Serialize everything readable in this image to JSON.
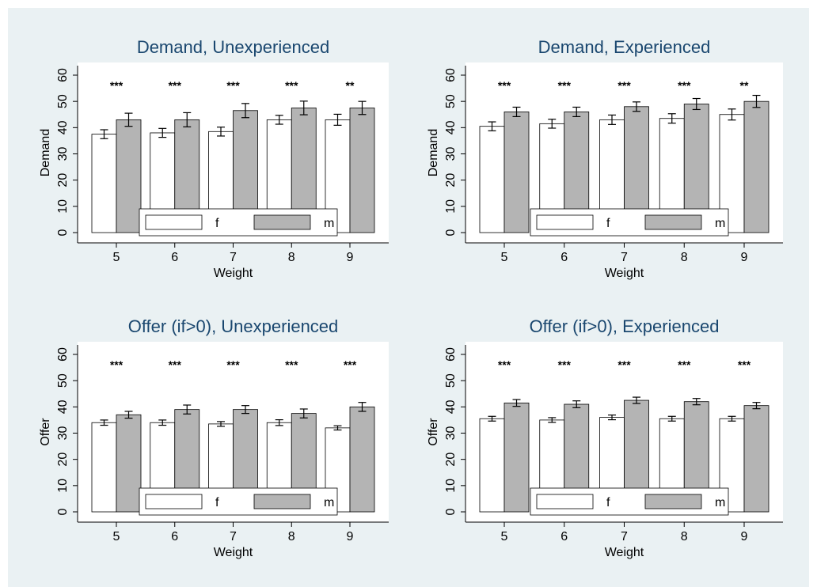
{
  "colors": {
    "background": "#eaf1f3",
    "plot_region": "#ffffff",
    "female_bar": "#ffffff",
    "male_bar": "#b4b4b4",
    "title_text": "#1a476f",
    "axis": "#000000"
  },
  "chart_data": [
    {
      "type": "bar",
      "title": "Demand, Unexperienced",
      "xlabel": "Weight",
      "ylabel": "Demand",
      "categories": [
        "5",
        "6",
        "7",
        "8",
        "9"
      ],
      "ylim": [
        0,
        60
      ],
      "yticks": [
        "0",
        "10",
        "20",
        "30",
        "40",
        "50",
        "60"
      ],
      "series": [
        {
          "name": "f",
          "values": [
            37.5,
            38.0,
            38.5,
            43.0,
            43.0
          ],
          "err_low": [
            35.8,
            36.3,
            36.8,
            41.3,
            40.9
          ],
          "err_high": [
            39.2,
            39.7,
            40.2,
            44.7,
            45.1
          ]
        },
        {
          "name": "m",
          "values": [
            43.0,
            43.0,
            46.5,
            47.5,
            47.5
          ],
          "err_low": [
            40.5,
            40.3,
            43.8,
            44.9,
            45.0
          ],
          "err_high": [
            45.5,
            45.7,
            49.2,
            50.1,
            50.0
          ]
        }
      ],
      "significance": [
        "***",
        "***",
        "***",
        "***",
        "**"
      ],
      "legend": {
        "position": "bottom-inside",
        "entries": [
          "f",
          "m"
        ]
      }
    },
    {
      "type": "bar",
      "title": "Demand, Experienced",
      "xlabel": "Weight",
      "ylabel": "Demand",
      "categories": [
        "5",
        "6",
        "7",
        "8",
        "9"
      ],
      "ylim": [
        0,
        60
      ],
      "yticks": [
        "0",
        "10",
        "20",
        "30",
        "40",
        "50",
        "60"
      ],
      "series": [
        {
          "name": "f",
          "values": [
            40.5,
            41.5,
            43.0,
            43.5,
            45.0
          ],
          "err_low": [
            38.8,
            39.8,
            41.2,
            41.7,
            42.9
          ],
          "err_high": [
            42.2,
            43.2,
            44.8,
            45.3,
            47.1
          ]
        },
        {
          "name": "m",
          "values": [
            46.0,
            46.0,
            48.0,
            49.0,
            50.0
          ],
          "err_low": [
            44.2,
            44.2,
            46.2,
            46.9,
            47.7
          ],
          "err_high": [
            47.8,
            47.8,
            49.8,
            51.1,
            52.3
          ]
        }
      ],
      "significance": [
        "***",
        "***",
        "***",
        "***",
        "**"
      ],
      "legend": {
        "position": "bottom-inside",
        "entries": [
          "f",
          "m"
        ]
      }
    },
    {
      "type": "bar",
      "title": "Offer (if>0), Unexperienced",
      "xlabel": "Weight",
      "ylabel": "Offer",
      "categories": [
        "5",
        "6",
        "7",
        "8",
        "9"
      ],
      "ylim": [
        0,
        60
      ],
      "yticks": [
        "0",
        "10",
        "20",
        "30",
        "40",
        "50",
        "60"
      ],
      "series": [
        {
          "name": "f",
          "values": [
            34.0,
            34.0,
            33.5,
            34.0,
            32.0
          ],
          "err_low": [
            33.0,
            33.0,
            32.6,
            32.9,
            31.2
          ],
          "err_high": [
            35.0,
            35.0,
            34.4,
            35.1,
            32.8
          ]
        },
        {
          "name": "m",
          "values": [
            37.0,
            39.0,
            39.0,
            37.5,
            40.0
          ],
          "err_low": [
            35.7,
            37.3,
            37.5,
            35.8,
            38.3
          ],
          "err_high": [
            38.3,
            40.7,
            40.5,
            39.2,
            41.7
          ]
        }
      ],
      "significance": [
        "***",
        "***",
        "***",
        "***",
        "***"
      ],
      "legend": {
        "position": "bottom-inside",
        "entries": [
          "f",
          "m"
        ]
      }
    },
    {
      "type": "bar",
      "title": "Offer (if>0), Experienced",
      "xlabel": "Weight",
      "ylabel": "Offer",
      "categories": [
        "5",
        "6",
        "7",
        "8",
        "9"
      ],
      "ylim": [
        0,
        60
      ],
      "yticks": [
        "0",
        "10",
        "20",
        "30",
        "40",
        "50",
        "60"
      ],
      "series": [
        {
          "name": "f",
          "values": [
            35.5,
            35.0,
            36.0,
            35.5,
            35.5
          ],
          "err_low": [
            34.6,
            34.1,
            35.1,
            34.6,
            34.6
          ],
          "err_high": [
            36.4,
            35.9,
            36.9,
            36.4,
            36.4
          ]
        },
        {
          "name": "m",
          "values": [
            41.5,
            41.0,
            42.5,
            42.0,
            40.5
          ],
          "err_low": [
            40.2,
            39.7,
            41.3,
            40.8,
            39.3
          ],
          "err_high": [
            42.8,
            42.3,
            43.7,
            43.2,
            41.7
          ]
        }
      ],
      "significance": [
        "***",
        "***",
        "***",
        "***",
        "***"
      ],
      "legend": {
        "position": "bottom-inside",
        "entries": [
          "f",
          "m"
        ]
      }
    }
  ]
}
